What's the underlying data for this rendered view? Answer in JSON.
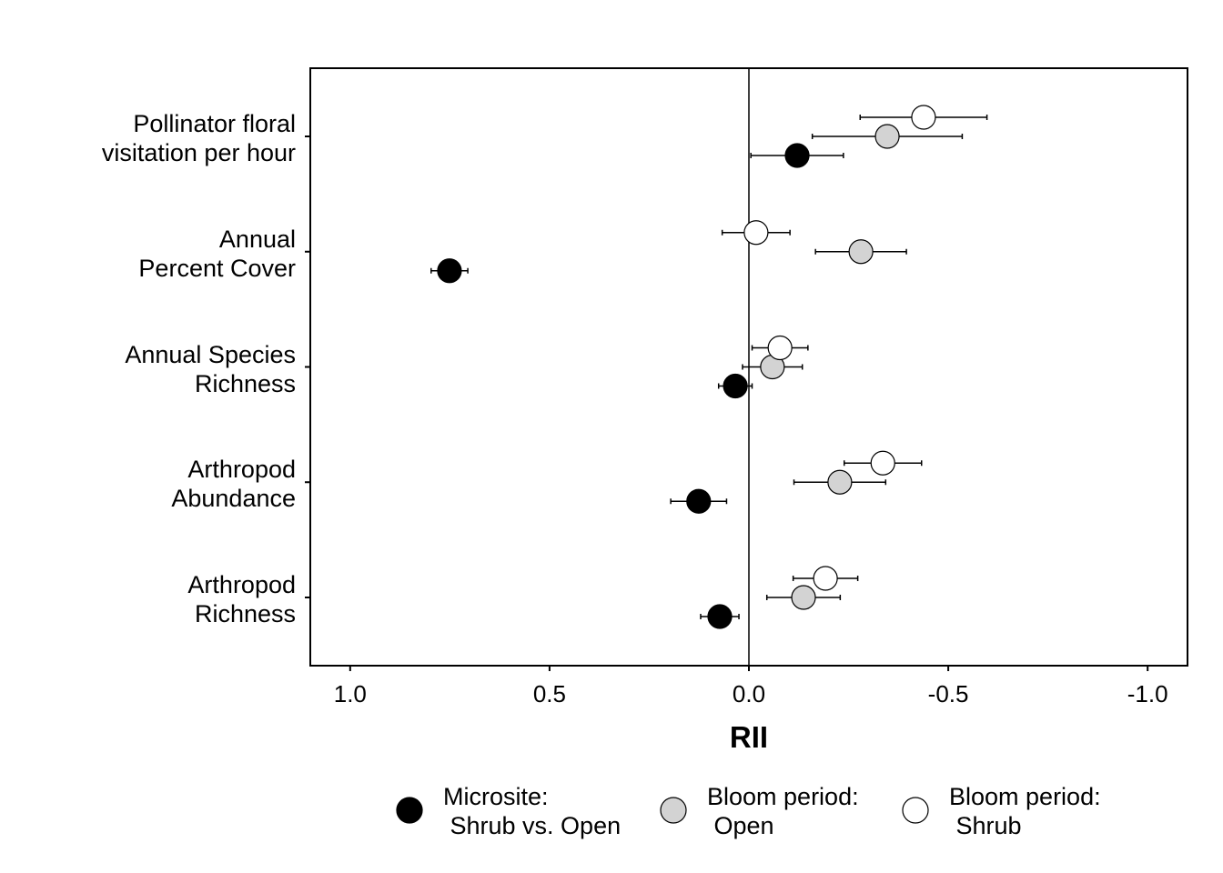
{
  "chart_data": {
    "type": "dot-errorbar",
    "x_label": "RII",
    "categories": [
      "Pollinator floral\nvisitation per hour",
      "Annual\nPercent Cover",
      "Annual Species\nRichness",
      "Arthropod\nAbundance",
      "Arthropod\nRichness"
    ],
    "series": [
      {
        "name": "Microsite:\n Shrub vs. Open",
        "color": "#000000",
        "values": [
          -0.121,
          0.751,
          0.034,
          0.126,
          0.073
        ],
        "errors": [
          0.116,
          0.046,
          0.042,
          0.07,
          0.048
        ]
      },
      {
        "name": "Bloom period:\n Open",
        "color": "#d3d3d3",
        "values": [
          -0.347,
          -0.281,
          -0.059,
          -0.228,
          -0.137
        ],
        "errors": [
          0.188,
          0.114,
          0.075,
          0.115,
          0.092
        ]
      },
      {
        "name": "Bloom period:\n Shrub",
        "color": "#ffffff",
        "values": [
          -0.438,
          -0.018,
          -0.078,
          -0.336,
          -0.192
        ],
        "errors": [
          0.159,
          0.085,
          0.07,
          0.097,
          0.081
        ]
      }
    ],
    "xlim": [
      1.1,
      -1.1
    ],
    "xticks": [
      {
        "value": 1.0,
        "label": "1.0"
      },
      {
        "value": 0.5,
        "label": "0.5"
      },
      {
        "value": 0.0,
        "label": "0.0"
      },
      {
        "value": -0.5,
        "label": "-0.5"
      },
      {
        "value": -1.0,
        "label": "-1.0"
      }
    ]
  }
}
